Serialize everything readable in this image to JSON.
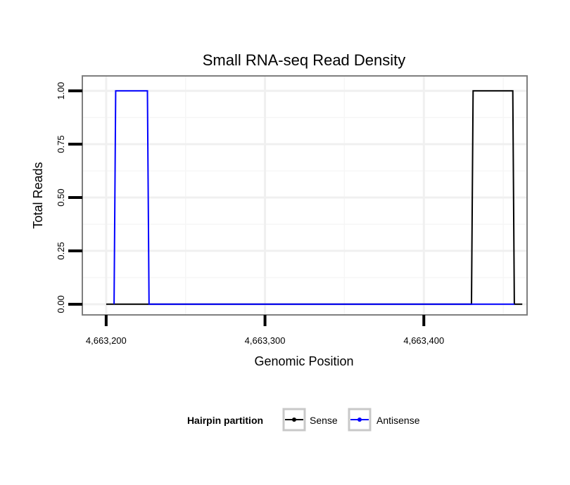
{
  "chart_data": {
    "type": "line",
    "title": "Small RNA-seq Read Density",
    "xlabel": "Genomic Position",
    "ylabel": "Total Reads",
    "xlim": [
      4663185,
      4663465
    ],
    "ylim": [
      -0.05,
      1.07
    ],
    "x_ticks": [
      4663200,
      4663300,
      4663400
    ],
    "x_tick_labels": [
      "4,663,200",
      "4,663,300",
      "4,663,400"
    ],
    "x_minor_grid": [
      4663250,
      4663350,
      4663450
    ],
    "y_ticks": [
      0,
      0.25,
      0.5,
      0.75,
      1.0
    ],
    "y_tick_labels": [
      "0.00",
      "0.25",
      "0.50",
      "0.75",
      "1.00"
    ],
    "y_minor_grid": [
      0.125,
      0.375,
      0.625,
      0.875
    ],
    "grid": true,
    "legend": {
      "title": "Hairpin partition",
      "position": "bottom",
      "entries": [
        "Sense",
        "Antisense"
      ]
    },
    "series": [
      {
        "name": "Sense",
        "color": "#000000",
        "x": [
          4663200,
          4663430,
          4663431,
          4663456,
          4663457,
          4663462
        ],
        "y": [
          0,
          0,
          1,
          1,
          0,
          0
        ]
      },
      {
        "name": "Antisense",
        "color": "#0000ff",
        "x": [
          4663205,
          4663206,
          4663226,
          4663227,
          4663430,
          4663457
        ],
        "y": [
          0,
          1,
          1,
          0,
          0,
          0
        ]
      }
    ]
  }
}
